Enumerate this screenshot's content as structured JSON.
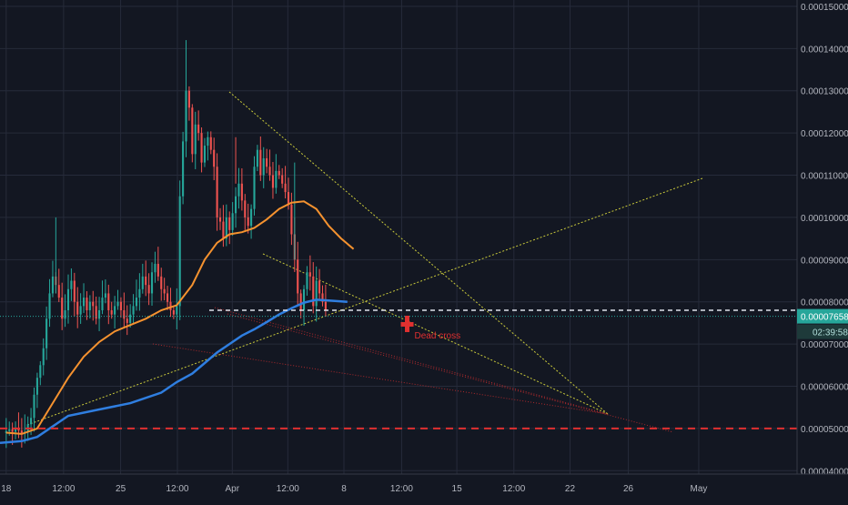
{
  "colors": {
    "background": "#131722",
    "grid": "#262b3a",
    "axis_text": "#b2b5be",
    "bull": "#26a69a",
    "bear": "#ef5350",
    "ma_orange": "#f5922f",
    "ma_blue": "#2f7ee0",
    "trend_yellow": "#c9c93a",
    "dead_red": "#e03030",
    "price_tag_bg": "#26a69a"
  },
  "chart_data": {
    "type": "candlestick",
    "title": "",
    "price_axis": {
      "ticks": [
        "0.00015000",
        "0.00014000",
        "0.00013000",
        "0.00012000",
        "0.00011000",
        "0.00010000",
        "0.00009000",
        "0.00008000",
        "0.00007000",
        "0.00006000",
        "0.00005000",
        "0.00004000"
      ],
      "tick_values": [
        15,
        14,
        13,
        12,
        11,
        10,
        9,
        8,
        7,
        6,
        5,
        4
      ],
      "ylim": [
        3.92,
        15.15
      ],
      "value_unit": "1e-5"
    },
    "time_axis": {
      "labels": [
        "18",
        "12:00",
        "25",
        "12:00",
        "Apr",
        "12:00",
        "8",
        "12:00",
        "15",
        "12:00",
        "22",
        "26",
        "May"
      ],
      "label_index": [
        0,
        18.5,
        36.9,
        55.2,
        72.9,
        90.8,
        108.9,
        127.5,
        145.3,
        163.7,
        181.8,
        200.6,
        223.3
      ],
      "xlim": [
        -2,
        255
      ]
    },
    "last_price": {
      "label": "0.00007658",
      "value": 7.658
    },
    "countdown": {
      "label": "02:39:58"
    },
    "candle_closes": [
      4.94,
      4.98,
      4.92,
      5.02,
      4.95,
      4.88,
      4.92,
      5.1,
      5.25,
      5.8,
      6.2,
      6.5,
      6.9,
      7.6,
      8.2,
      8.6,
      8.4,
      8.1,
      7.6,
      7.8,
      8.3,
      8.5,
      8.0,
      7.7,
      7.9,
      8.1,
      7.8,
      8.0,
      7.9,
      7.6,
      7.8,
      8.1,
      8.2,
      7.8,
      7.7,
      7.9,
      8.0,
      7.8,
      7.6,
      7.5,
      7.7,
      7.9,
      8.1,
      8.3,
      8.6,
      8.4,
      8.2,
      8.7,
      8.9,
      8.6,
      8.3,
      8.2,
      8.0,
      7.8,
      7.7,
      7.9,
      10.5,
      11.8,
      13.0,
      12.6,
      11.5,
      12.2,
      12.0,
      11.3,
      11.7,
      11.9,
      11.6,
      11.2,
      10.0,
      9.9,
      9.5,
      10.0,
      9.7,
      10.1,
      10.5,
      10.8,
      10.4,
      10.0,
      9.8,
      10.2,
      11.2,
      11.6,
      11.0,
      11.4,
      11.2,
      11.0,
      10.7,
      11.1,
      11.0,
      10.8,
      10.6,
      10.3,
      9.6,
      9.0,
      8.2,
      7.8,
      8.3,
      8.7,
      8.6,
      7.9,
      8.5,
      8.2,
      8.0,
      7.8
    ],
    "ma_orange": [
      [
        0,
        4.9
      ],
      [
        5,
        4.87
      ],
      [
        10,
        5.0
      ],
      [
        15,
        5.6
      ],
      [
        20,
        6.2
      ],
      [
        25,
        6.7
      ],
      [
        30,
        7.05
      ],
      [
        35,
        7.3
      ],
      [
        40,
        7.45
      ],
      [
        45,
        7.6
      ],
      [
        50,
        7.8
      ],
      [
        55,
        7.92
      ],
      [
        60,
        8.4
      ],
      [
        64,
        9.0
      ],
      [
        68,
        9.4
      ],
      [
        72,
        9.6
      ],
      [
        76,
        9.65
      ],
      [
        80,
        9.75
      ],
      [
        84,
        9.95
      ],
      [
        88,
        10.2
      ],
      [
        92,
        10.35
      ],
      [
        96,
        10.38
      ],
      [
        100,
        10.2
      ],
      [
        104,
        9.8
      ],
      [
        108,
        9.5
      ],
      [
        112,
        9.25
      ]
    ],
    "ma_blue": [
      [
        -2,
        4.66
      ],
      [
        5,
        4.7
      ],
      [
        10,
        4.8
      ],
      [
        20,
        5.3
      ],
      [
        30,
        5.45
      ],
      [
        40,
        5.6
      ],
      [
        50,
        5.85
      ],
      [
        55,
        6.1
      ],
      [
        60,
        6.3
      ],
      [
        64,
        6.55
      ],
      [
        68,
        6.8
      ],
      [
        72,
        7.0
      ],
      [
        76,
        7.2
      ],
      [
        80,
        7.35
      ],
      [
        84,
        7.52
      ],
      [
        88,
        7.7
      ],
      [
        92,
        7.85
      ],
      [
        96,
        7.98
      ],
      [
        100,
        8.05
      ],
      [
        104,
        8.03
      ],
      [
        110,
        8.0
      ]
    ],
    "annotations": [
      {
        "label": "Dead cross",
        "index": 129,
        "value": 7.24
      }
    ]
  }
}
